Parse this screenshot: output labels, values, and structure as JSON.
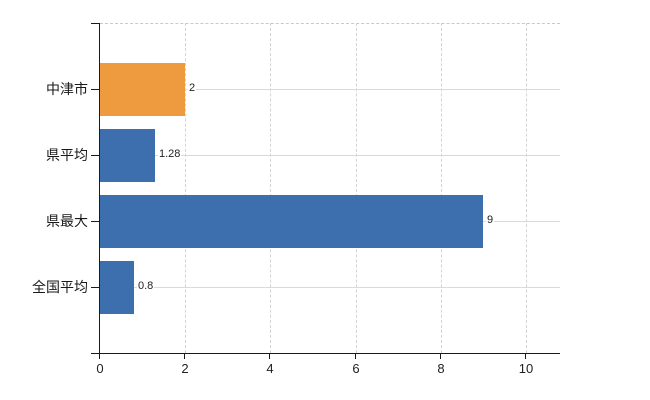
{
  "chart_data": {
    "type": "bar",
    "orientation": "horizontal",
    "title": "",
    "xlabel": "",
    "ylabel": "",
    "categories": [
      "中津市",
      "県平均",
      "県最大",
      "全国平均"
    ],
    "values": [
      2,
      1.28,
      9,
      0.8
    ],
    "value_labels": [
      "2",
      "1.28",
      "9",
      "0.8"
    ],
    "bar_colors": [
      "#ee9a3e",
      "#3d6fae",
      "#3d6fae",
      "#3d6fae"
    ],
    "x_ticks": [
      0,
      2,
      4,
      6,
      8,
      10
    ],
    "x_tick_labels": [
      "0",
      "2",
      "4",
      "6",
      "8",
      "10"
    ],
    "xlim": [
      0,
      10.8
    ],
    "grid": true,
    "legend": "none",
    "colors": {
      "highlight_bar": "#ee9a3e",
      "default_bar": "#3d6fae",
      "axis": "#1a1a1a",
      "grid_vertical": "#d3d3d7",
      "grid_horizontal": "#d6ddd6",
      "top_border": "#c9c9c9",
      "text": "#1a1a1a",
      "background": "#ffffff"
    }
  }
}
